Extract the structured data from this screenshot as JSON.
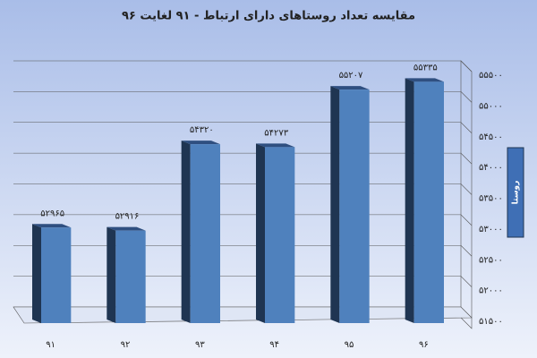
{
  "chart_data": {
    "type": "bar",
    "title": "مقایسه تعداد روستاهای دارای ارتباط - ۹۱ لغایت ۹۶",
    "y_label": "روستا",
    "categories": [
      "۹۱",
      "۹۲",
      "۹۳",
      "۹۴",
      "۹۵",
      "۹۶"
    ],
    "values": [
      52965,
      52916,
      54320,
      54273,
      55207,
      55335
    ],
    "value_labels": [
      "۵۲۹۶۵",
      "۵۲۹۱۶",
      "۵۴۳۲۰",
      "۵۴۲۷۳",
      "۵۵۲۰۷",
      "۵۵۳۳۵"
    ],
    "color": "#4f81bd",
    "ylim": [
      51500,
      55500
    ],
    "yticks": [
      {
        "value": 51500,
        "label": "۵۱۵۰۰"
      },
      {
        "value": 52000,
        "label": "۵۲۰۰۰"
      },
      {
        "value": 52500,
        "label": "۵۲۵۰۰"
      },
      {
        "value": 53000,
        "label": "۵۳۰۰۰"
      },
      {
        "value": 53500,
        "label": "۵۳۵۰۰"
      },
      {
        "value": 54000,
        "label": "۵۴۰۰۰"
      },
      {
        "value": 54500,
        "label": "۵۴۵۰۰"
      },
      {
        "value": 55000,
        "label": "۵۵۰۰۰"
      },
      {
        "value": 55500,
        "label": "۵۵۵۰۰"
      }
    ],
    "grid": true
  }
}
